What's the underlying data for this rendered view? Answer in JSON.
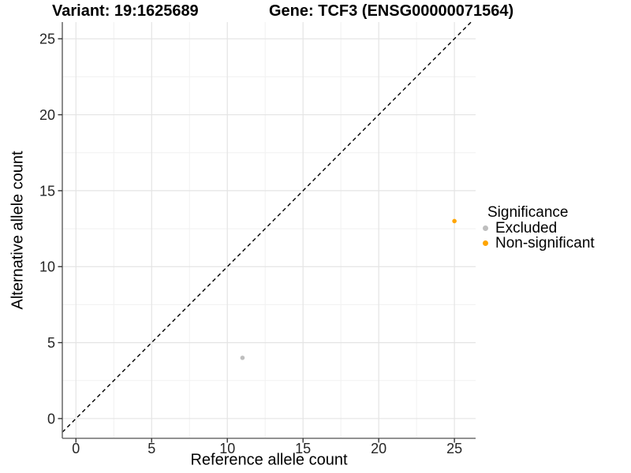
{
  "chart_data": {
    "type": "scatter",
    "titles": [
      "Variant: 19:1625689",
      "Gene: TCF3 (ENSG00000071564)"
    ],
    "xlabel": "Reference allele count",
    "ylabel": "Alternative allele count",
    "x_ticks": [
      0,
      5,
      10,
      15,
      20,
      25
    ],
    "y_ticks": [
      0,
      5,
      10,
      15,
      20,
      25
    ],
    "xlim": [
      -0.9,
      26.4
    ],
    "ylim": [
      -1.3,
      26.1
    ],
    "minor_step": 2.5,
    "grid": {
      "on": true,
      "major_color": "#E4E4E4",
      "minor_color": "#F1F1F1"
    },
    "axis_line_color": "#6F6F6F",
    "tick_mark_color": "#333333",
    "tick_label_color": "#262626",
    "identity_line": {
      "style": "dashed",
      "color": "#000000",
      "slope": 1,
      "intercept": 0
    },
    "legend": {
      "title": "Significance",
      "position": "right",
      "items": [
        {
          "label": "Excluded",
          "color": "#BEBEBE"
        },
        {
          "label": "Non-significant",
          "color": "#FFA500"
        }
      ]
    },
    "series": [
      {
        "name": "Excluded",
        "color": "#BEBEBE",
        "point_radius": 2.8,
        "points": [
          [
            11,
            4
          ]
        ]
      },
      {
        "name": "Non-significant",
        "color": "#FFA500",
        "point_radius": 2.8,
        "points": [
          [
            25,
            13
          ]
        ]
      }
    ]
  }
}
